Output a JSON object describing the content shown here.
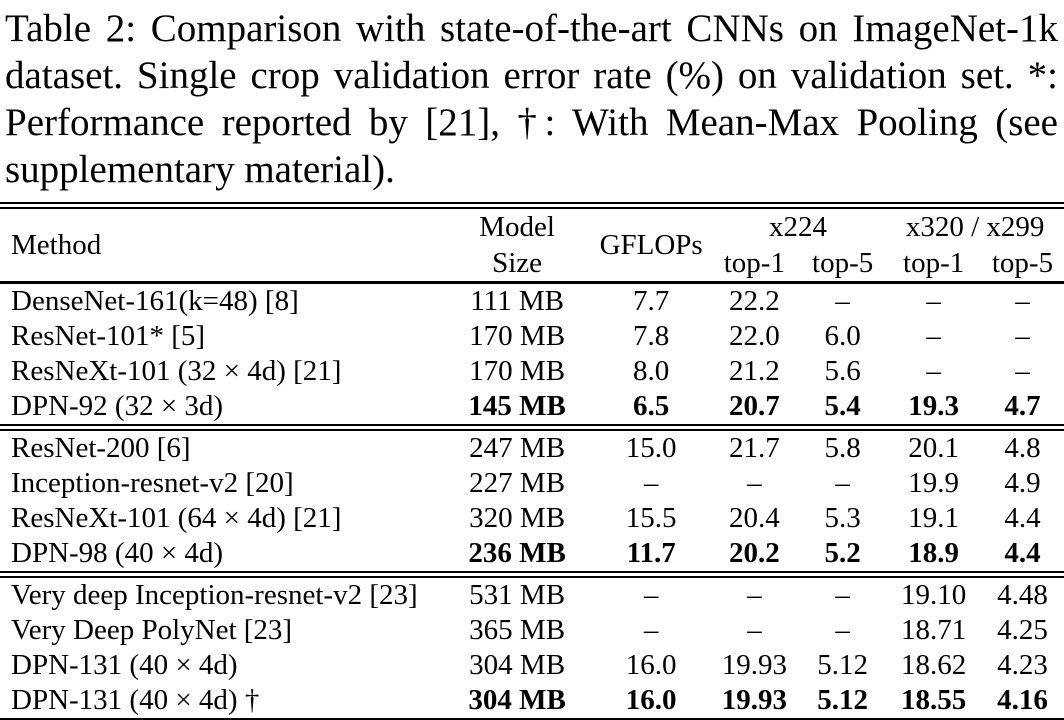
{
  "caption": {
    "text": "Table 2: Comparison with state-of-the-art CNNs on ImageNet-1k dataset. Single crop validation error rate (%) on validation set. *: Performance reported by [21], †: With Mean-Max Pooling (see supplementary material)."
  },
  "table": {
    "headers": {
      "method": "Method",
      "model_size_line1": "Model",
      "model_size_line2": "Size",
      "gflops": "GFLOPs",
      "group_224": "x224",
      "group_320": "x320 / x299",
      "top1_224": "top-1",
      "top5_224": "top-5",
      "top1_320": "top-1",
      "top5_320": "top-5"
    },
    "groups": [
      {
        "rows": [
          {
            "method": "DenseNet-161(k=48) [8]",
            "size": "111 MB",
            "gflops": "7.7",
            "t1_224": "22.2",
            "t5_224": "–",
            "t1_320": "–",
            "t5_320": "–",
            "bold": false
          },
          {
            "method": "ResNet-101* [5]",
            "size": "170 MB",
            "gflops": "7.8",
            "t1_224": "22.0",
            "t5_224": "6.0",
            "t1_320": "–",
            "t5_320": "–",
            "bold": false
          },
          {
            "method": "ResNeXt-101 (32 × 4d) [21]",
            "size": "170 MB",
            "gflops": "8.0",
            "t1_224": "21.2",
            "t5_224": "5.6",
            "t1_320": "–",
            "t5_320": "–",
            "bold": false
          },
          {
            "method": "DPN-92 (32 × 3d)",
            "size": "145 MB",
            "gflops": "6.5",
            "t1_224": "20.7",
            "t5_224": "5.4",
            "t1_320": "19.3",
            "t5_320": "4.7",
            "bold": true
          }
        ]
      },
      {
        "rows": [
          {
            "method": "ResNet-200 [6]",
            "size": "247 MB",
            "gflops": "15.0",
            "t1_224": "21.7",
            "t5_224": "5.8",
            "t1_320": "20.1",
            "t5_320": "4.8",
            "bold": false
          },
          {
            "method": "Inception-resnet-v2 [20]",
            "size": "227 MB",
            "gflops": "–",
            "t1_224": "–",
            "t5_224": "–",
            "t1_320": "19.9",
            "t5_320": "4.9",
            "bold": false
          },
          {
            "method": "ResNeXt-101 (64 × 4d) [21]",
            "size": "320 MB",
            "gflops": "15.5",
            "t1_224": "20.4",
            "t5_224": "5.3",
            "t1_320": "19.1",
            "t5_320": "4.4",
            "bold": false
          },
          {
            "method": "DPN-98 (40 × 4d)",
            "size": "236 MB",
            "gflops": "11.7",
            "t1_224": "20.2",
            "t5_224": "5.2",
            "t1_320": "18.9",
            "t5_320": "4.4",
            "bold": true
          }
        ]
      },
      {
        "rows": [
          {
            "method": "Very deep Inception-resnet-v2 [23]",
            "size": "531 MB",
            "gflops": "–",
            "t1_224": "–",
            "t5_224": "–",
            "t1_320": "19.10",
            "t5_320": "4.48",
            "bold": false
          },
          {
            "method": "Very Deep PolyNet [23]",
            "size": "365 MB",
            "gflops": "–",
            "t1_224": "–",
            "t5_224": "–",
            "t1_320": "18.71",
            "t5_320": "4.25",
            "bold": false
          },
          {
            "method": "DPN-131 (40 × 4d)",
            "size": "304 MB",
            "gflops": "16.0",
            "t1_224": "19.93",
            "t5_224": "5.12",
            "t1_320": "18.62",
            "t5_320": "4.23",
            "bold": false
          },
          {
            "method": "DPN-131 (40 × 4d) †",
            "size": "304 MB",
            "gflops": "16.0",
            "t1_224": "19.93",
            "t5_224": "5.12",
            "t1_320": "18.55",
            "t5_320": "4.16",
            "bold": true
          }
        ]
      }
    ]
  }
}
